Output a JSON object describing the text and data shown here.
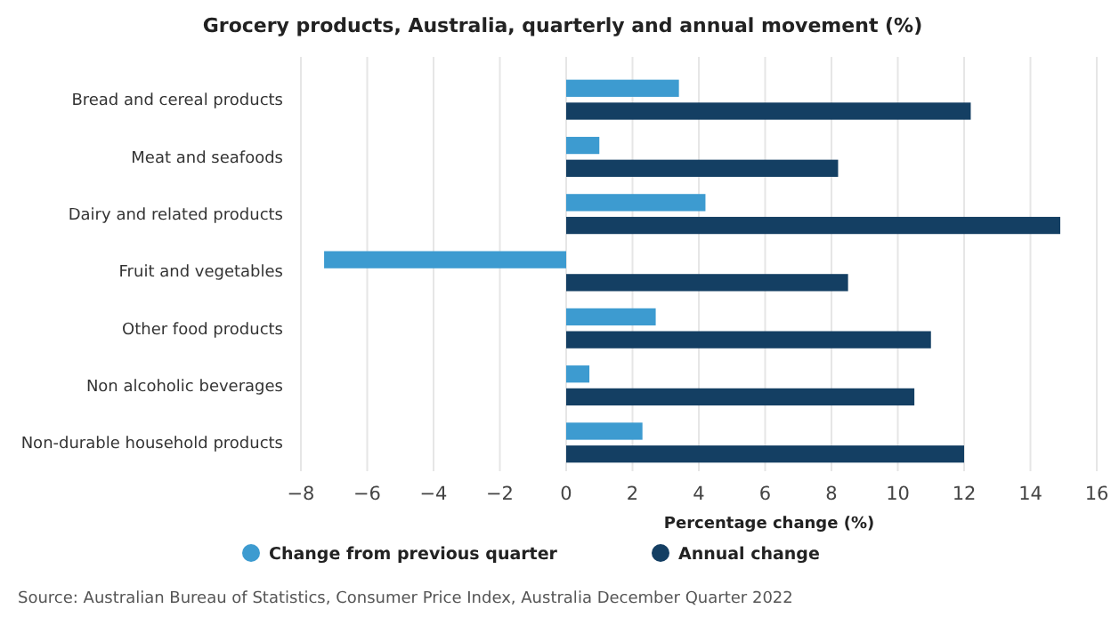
{
  "chart_data": {
    "type": "bar",
    "orientation": "horizontal",
    "title": "Grocery products, Australia, quarterly and annual movement (%)",
    "xlabel": "Percentage change (%)",
    "categories": [
      "Bread and cereal products",
      "Meat and seafoods",
      "Dairy and related products",
      "Fruit and vegetables",
      "Other food products",
      "Non alcoholic beverages",
      "Non-durable household products"
    ],
    "series": [
      {
        "name": "Change from previous quarter",
        "color": "#3d9bd0",
        "values": [
          3.4,
          1.0,
          4.2,
          -7.3,
          2.7,
          0.7,
          2.3
        ]
      },
      {
        "name": "Annual change",
        "color": "#143f63",
        "values": [
          12.2,
          8.2,
          14.9,
          8.5,
          11.0,
          10.5,
          12.0
        ]
      }
    ],
    "xlim": [
      -8,
      16
    ],
    "xticks": [
      -8,
      -6,
      -4,
      -2,
      0,
      2,
      4,
      6,
      8,
      10,
      12,
      14,
      16
    ],
    "grid": "x",
    "legend": "bottom",
    "annotations": [
      "Source: Australian Bureau of Statistics, Consumer Price Index, Australia December Quarter 2022"
    ]
  }
}
